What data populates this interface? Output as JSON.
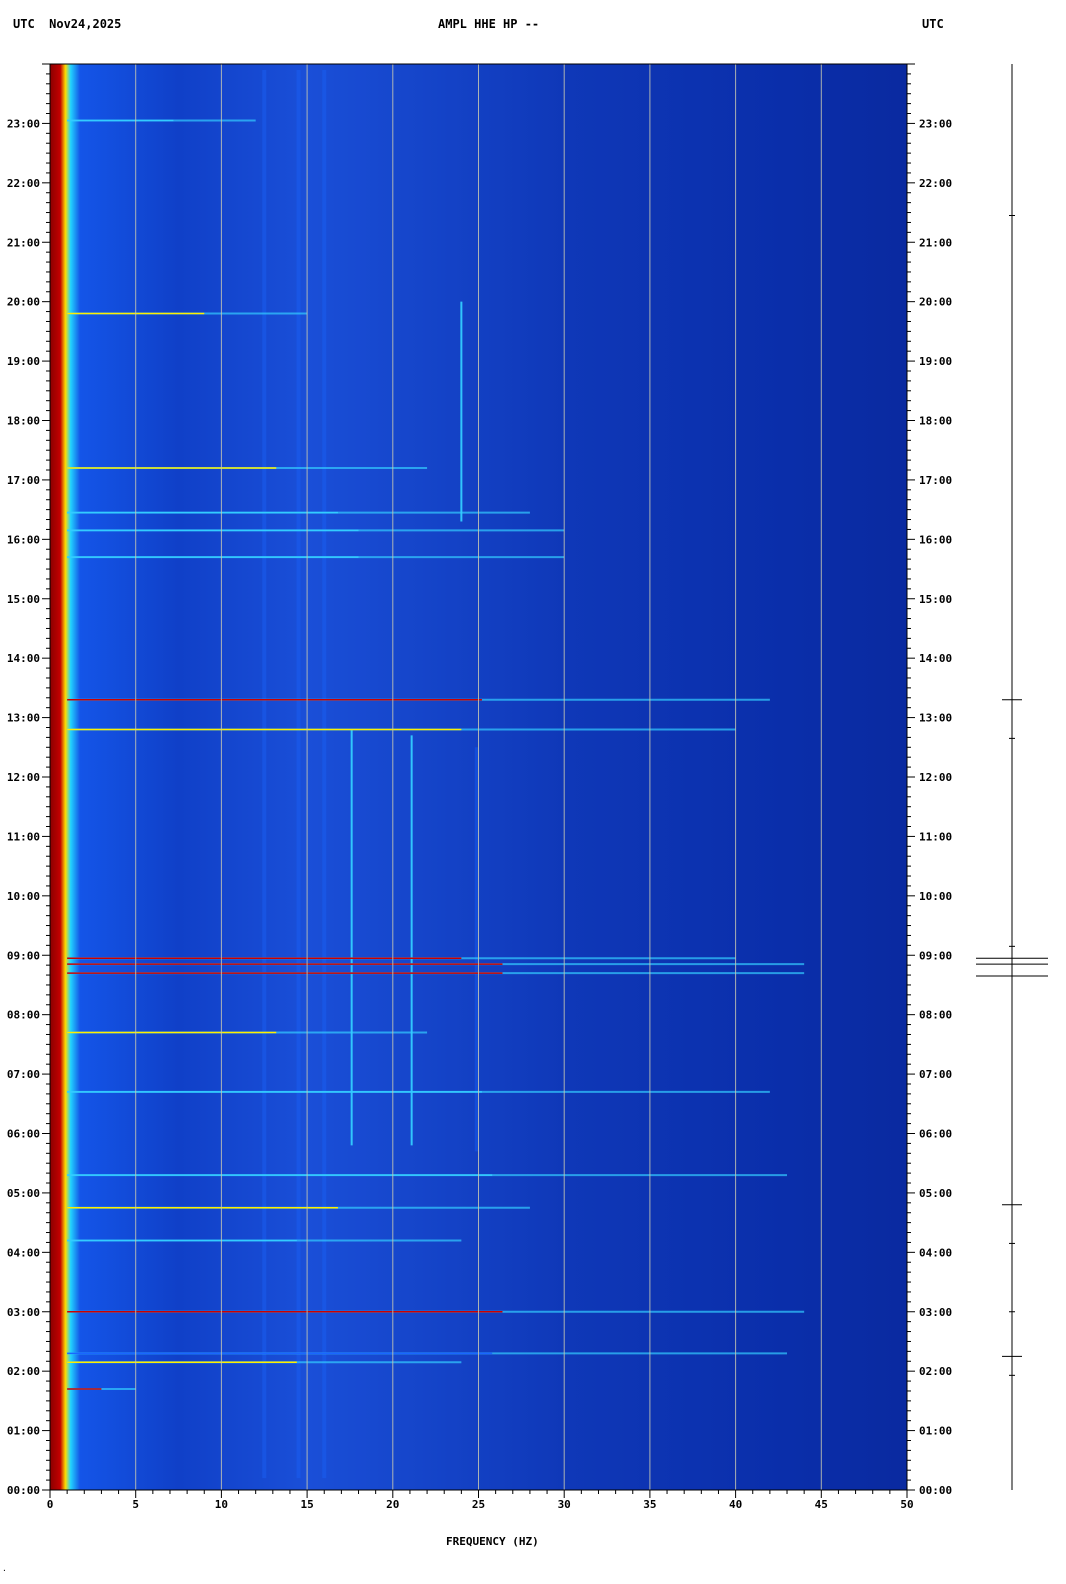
{
  "header": {
    "left": "UTC  Nov24,2025",
    "center": "AMPL HHE HP --",
    "right": "UTC"
  },
  "chart_data": {
    "type": "heatmap",
    "title": "AMPL HHE HP --",
    "date": "Nov24,2025",
    "timezone": "UTC",
    "xlabel": "FREQUENCY (HZ)",
    "xlim": [
      0,
      50
    ],
    "x_ticks": [
      "0",
      "5",
      "10",
      "15",
      "20",
      "25",
      "30",
      "35",
      "40",
      "45",
      "50"
    ],
    "y_ticks": [
      "00:00",
      "01:00",
      "02:00",
      "03:00",
      "04:00",
      "05:00",
      "06:00",
      "07:00",
      "08:00",
      "09:00",
      "10:00",
      "11:00",
      "12:00",
      "13:00",
      "14:00",
      "15:00",
      "16:00",
      "17:00",
      "18:00",
      "19:00",
      "20:00",
      "21:00",
      "22:00",
      "23:00"
    ],
    "ylim_hours": [
      0,
      24
    ],
    "colors": {
      "background": "#0a2aa8",
      "low_band": "#a00000",
      "energy": "#1a66ff",
      "mid": "#33ccff",
      "high": "#ffee00",
      "peak": "#cc0000"
    },
    "events": [
      {
        "hour": 1.7,
        "fmax": 5,
        "level": 0.9
      },
      {
        "hour": 2.15,
        "fmax": 24,
        "level": 0.7
      },
      {
        "hour": 2.3,
        "fmax": 43,
        "level": 0.45
      },
      {
        "hour": 3.0,
        "fmax": 44,
        "level": 1.0
      },
      {
        "hour": 4.2,
        "fmax": 24,
        "level": 0.5
      },
      {
        "hour": 4.75,
        "fmax": 28,
        "level": 0.75
      },
      {
        "hour": 5.3,
        "fmax": 43,
        "level": 0.6
      },
      {
        "hour": 6.7,
        "fmax": 42,
        "level": 0.55
      },
      {
        "hour": 7.7,
        "fmax": 22,
        "level": 0.7
      },
      {
        "hour": 8.7,
        "fmax": 44,
        "level": 0.95
      },
      {
        "hour": 8.85,
        "fmax": 44,
        "level": 1.0
      },
      {
        "hour": 8.95,
        "fmax": 40,
        "level": 0.9
      },
      {
        "hour": 12.8,
        "fmax": 40,
        "level": 0.85
      },
      {
        "hour": 13.3,
        "fmax": 42,
        "level": 0.95
      },
      {
        "hour": 15.7,
        "fmax": 30,
        "level": 0.6
      },
      {
        "hour": 16.15,
        "fmax": 30,
        "level": 0.5
      },
      {
        "hour": 16.45,
        "fmax": 28,
        "level": 0.5
      },
      {
        "hour": 17.2,
        "fmax": 22,
        "level": 0.7
      },
      {
        "hour": 19.8,
        "fmax": 15,
        "level": 0.85
      },
      {
        "hour": 23.05,
        "fmax": 12,
        "level": 0.5
      }
    ],
    "tones": [
      {
        "freq": 17.6,
        "hour_start": 5.8,
        "hour_end": 12.8,
        "level": 0.6
      },
      {
        "freq": 21.1,
        "hour_start": 5.8,
        "hour_end": 12.7,
        "level": 0.55
      },
      {
        "freq": 24.0,
        "hour_start": 16.3,
        "hour_end": 20.0,
        "level": 0.55
      },
      {
        "freq": 24.9,
        "hour_start": 5.7,
        "hour_end": 12.5,
        "level": 0.35
      },
      {
        "freq": 12.5,
        "hour_start": 0.2,
        "hour_end": 23.9,
        "level": 0.3
      },
      {
        "freq": 14.5,
        "hour_start": 0.2,
        "hour_end": 23.9,
        "level": 0.35
      },
      {
        "freq": 16.0,
        "hour_start": 0.2,
        "hour_end": 23.9,
        "level": 0.3
      }
    ],
    "trace_events_hours": [
      1.93,
      2.25,
      3.0,
      4.15,
      4.8,
      8.65,
      8.85,
      8.95,
      9.15,
      12.65,
      13.3,
      21.45
    ]
  }
}
